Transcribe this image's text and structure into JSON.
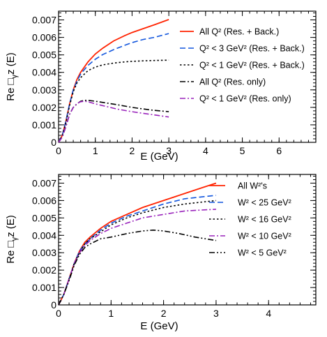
{
  "chart_data": [
    {
      "type": "line",
      "ylabel_main": "Re ",
      "ylabel_sub": "γ",
      "ylabel_tail": "z (E)",
      "xlabel": "E (GeV)",
      "xlim": [
        0,
        7
      ],
      "ylim": [
        0,
        0.0075
      ],
      "xticks": [
        0,
        1,
        2,
        3,
        4,
        5,
        6
      ],
      "xtick_labels": [
        "0",
        "1",
        "2",
        "3",
        "4",
        "5",
        "6"
      ],
      "yticks": [
        0,
        0.001,
        0.002,
        0.003,
        0.004,
        0.005,
        0.006,
        0.007
      ],
      "ytick_labels": [
        "0",
        "0.001",
        "0.002",
        "0.003",
        "0.004",
        "0.005",
        "0.006",
        "0.007"
      ],
      "legend_position": "top-right",
      "series": [
        {
          "name": "All Q² (Res. + Back.)",
          "color": "#ff2200",
          "dash": "solid",
          "x": [
            0,
            0.1,
            0.2,
            0.3,
            0.4,
            0.5,
            0.6,
            0.8,
            1.0,
            1.2,
            1.5,
            1.8,
            2.0,
            2.3,
            2.6,
            3.0
          ],
          "y": [
            0,
            0.0004,
            0.0012,
            0.0022,
            0.003,
            0.0036,
            0.004,
            0.0046,
            0.00505,
            0.00538,
            0.0058,
            0.0061,
            0.00628,
            0.0065,
            0.00672,
            0.00702
          ]
        },
        {
          "name": "Q² < 3 GeV² (Res. + Back.)",
          "color": "#1155dd",
          "dash": "long",
          "x": [
            0,
            0.1,
            0.2,
            0.3,
            0.4,
            0.5,
            0.6,
            0.8,
            1.0,
            1.2,
            1.5,
            1.8,
            2.0,
            2.3,
            2.6,
            3.0
          ],
          "y": [
            0,
            0.0004,
            0.0012,
            0.0022,
            0.003,
            0.0035,
            0.0039,
            0.0044,
            0.00475,
            0.00502,
            0.0053,
            0.00555,
            0.0057,
            0.00588,
            0.006,
            0.00622
          ]
        },
        {
          "name": "Q² < 1 GeV² (Res. + Back.)",
          "color": "#000000",
          "dash": "dot",
          "x": [
            0,
            0.1,
            0.2,
            0.3,
            0.4,
            0.5,
            0.6,
            0.8,
            1.0,
            1.2,
            1.5,
            1.8,
            2.0,
            2.3,
            2.6,
            3.0
          ],
          "y": [
            0,
            0.0004,
            0.0011,
            0.0021,
            0.0029,
            0.0034,
            0.0037,
            0.0041,
            0.0043,
            0.00443,
            0.00453,
            0.0046,
            0.00463,
            0.00466,
            0.00468,
            0.0047
          ]
        },
        {
          "name": "All Q² (Res. only)",
          "color": "#000000",
          "dash": "dashdot",
          "x": [
            0,
            0.1,
            0.2,
            0.3,
            0.4,
            0.5,
            0.6,
            0.7,
            0.8,
            1.0,
            1.3,
            1.6,
            2.0,
            2.5,
            3.0
          ],
          "y": [
            0,
            0.0003,
            0.0009,
            0.0016,
            0.002,
            0.0022,
            0.00235,
            0.0024,
            0.0024,
            0.00235,
            0.00225,
            0.00215,
            0.002,
            0.00185,
            0.00175
          ]
        },
        {
          "name": "Q² < 1 GeV² (Res. only)",
          "color": "#9922bb",
          "dash": "dashdot",
          "x": [
            0,
            0.1,
            0.2,
            0.3,
            0.4,
            0.5,
            0.6,
            0.7,
            0.8,
            1.0,
            1.3,
            1.6,
            2.0,
            2.5,
            3.0
          ],
          "y": [
            0,
            0.0003,
            0.0009,
            0.0016,
            0.002,
            0.00222,
            0.00232,
            0.00235,
            0.00232,
            0.0022,
            0.00205,
            0.0019,
            0.00175,
            0.0016,
            0.00145
          ]
        }
      ]
    },
    {
      "type": "line",
      "ylabel_main": "Re ",
      "ylabel_sub": "γ",
      "ylabel_tail": "z (E)",
      "xlabel": "E (GeV)",
      "xlim": [
        0,
        4.9
      ],
      "ylim": [
        0,
        0.0075
      ],
      "xticks": [
        0,
        1,
        2,
        3,
        4
      ],
      "xtick_labels": [
        "0",
        "1",
        "2",
        "3",
        "4"
      ],
      "yticks": [
        0,
        0.001,
        0.002,
        0.003,
        0.004,
        0.005,
        0.006,
        0.007
      ],
      "ytick_labels": [
        "0",
        "0.001",
        "0.002",
        "0.003",
        "0.004",
        "0.005",
        "0.006",
        "0.007"
      ],
      "legend_position": "top-right",
      "series": [
        {
          "name": "All W²'s",
          "color": "#ff2200",
          "dash": "solid",
          "x": [
            0,
            0.1,
            0.2,
            0.3,
            0.4,
            0.5,
            0.6,
            0.8,
            1.0,
            1.3,
            1.6,
            2.0,
            2.4,
            2.7,
            3.0
          ],
          "y": [
            0,
            0.0006,
            0.0015,
            0.0024,
            0.0031,
            0.0036,
            0.0039,
            0.0044,
            0.0048,
            0.0052,
            0.0056,
            0.006,
            0.0064,
            0.0067,
            0.007
          ]
        },
        {
          "name": "W² < 25 GeV²",
          "color": "#1155dd",
          "dash": "long",
          "x": [
            0,
            0.1,
            0.2,
            0.3,
            0.4,
            0.5,
            0.6,
            0.8,
            1.0,
            1.3,
            1.6,
            2.0,
            2.4,
            2.7,
            3.0
          ],
          "y": [
            0,
            0.0006,
            0.0015,
            0.0024,
            0.0031,
            0.0035,
            0.0038,
            0.0043,
            0.0047,
            0.0051,
            0.0054,
            0.0058,
            0.0061,
            0.0062,
            0.0063
          ]
        },
        {
          "name": "W² < 16 GeV²",
          "color": "#000000",
          "dash": "dot",
          "x": [
            0,
            0.1,
            0.2,
            0.3,
            0.4,
            0.5,
            0.6,
            0.8,
            1.0,
            1.3,
            1.6,
            2.0,
            2.4,
            2.7,
            3.0
          ],
          "y": [
            0,
            0.0006,
            0.0015,
            0.0024,
            0.003,
            0.0035,
            0.0038,
            0.0042,
            0.0046,
            0.005,
            0.0053,
            0.0056,
            0.0058,
            0.0059,
            0.006
          ]
        },
        {
          "name": "W² < 10 GeV²",
          "color": "#9922bb",
          "dash": "dashdot",
          "x": [
            0,
            0.1,
            0.2,
            0.3,
            0.4,
            0.5,
            0.6,
            0.8,
            1.0,
            1.3,
            1.6,
            2.0,
            2.4,
            2.7,
            3.0
          ],
          "y": [
            0,
            0.0006,
            0.0015,
            0.0024,
            0.003,
            0.0034,
            0.0037,
            0.0041,
            0.0044,
            0.0047,
            0.005,
            0.0052,
            0.0054,
            0.00545,
            0.0055
          ]
        },
        {
          "name": "W² <  5 GeV²",
          "color": "#000000",
          "dash": "dashdotdot",
          "x": [
            0,
            0.1,
            0.2,
            0.3,
            0.4,
            0.5,
            0.6,
            0.8,
            1.0,
            1.3,
            1.6,
            1.8,
            2.0,
            2.3,
            2.6,
            3.0
          ],
          "y": [
            0,
            0.0006,
            0.0014,
            0.0023,
            0.0029,
            0.0033,
            0.0035,
            0.0038,
            0.0039,
            0.0041,
            0.00425,
            0.0043,
            0.00425,
            0.0041,
            0.0039,
            0.0037
          ]
        }
      ]
    }
  ]
}
